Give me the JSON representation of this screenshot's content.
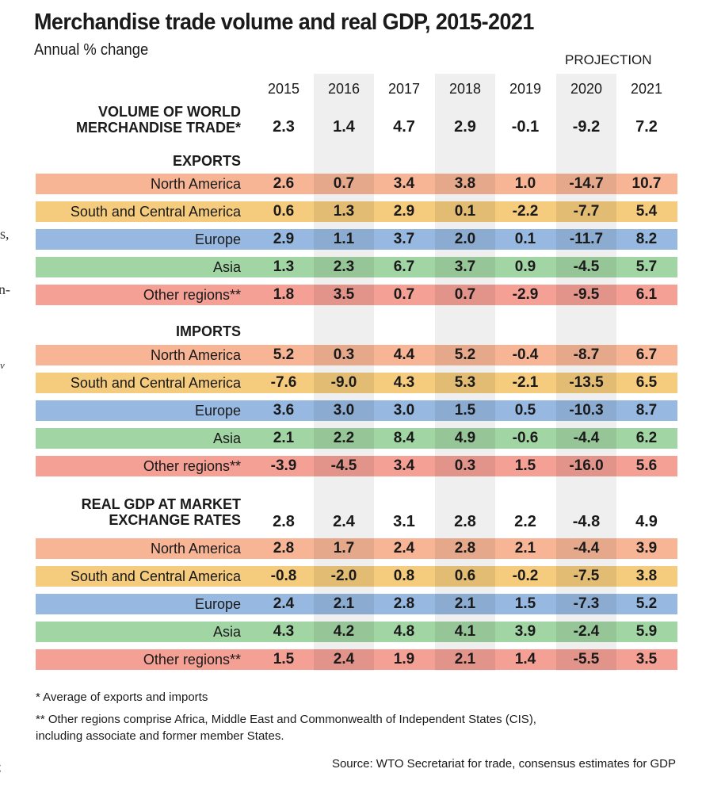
{
  "chart_data": {
    "type": "table",
    "title": "Merchandise trade volume and real GDP, 2015-2021",
    "subtitle": "Annual % change",
    "projection_label": "PROJECTION",
    "projection_years": [
      "2020",
      "2021"
    ],
    "years": [
      "2015",
      "2016",
      "2017",
      "2018",
      "2019",
      "2020",
      "2021"
    ],
    "world_trade": {
      "label_line1": "VOLUME OF WORLD",
      "label_line2": "MERCHANDISE TRADE*",
      "values": [
        "2.3",
        "1.4",
        "4.7",
        "2.9",
        "-0.1",
        "-9.2",
        "7.2"
      ]
    },
    "sections": [
      {
        "heading": "EXPORTS",
        "rows": [
          {
            "region": "North America",
            "values": [
              "2.6",
              "0.7",
              "3.4",
              "3.8",
              "1.0",
              "-14.7",
              "10.7"
            ]
          },
          {
            "region": "South and Central America",
            "values": [
              "0.6",
              "1.3",
              "2.9",
              "0.1",
              "-2.2",
              "-7.7",
              "5.4"
            ]
          },
          {
            "region": "Europe",
            "values": [
              "2.9",
              "1.1",
              "3.7",
              "2.0",
              "0.1",
              "-11.7",
              "8.2"
            ]
          },
          {
            "region": "Asia",
            "values": [
              "1.3",
              "2.3",
              "6.7",
              "3.7",
              "0.9",
              "-4.5",
              "5.7"
            ]
          },
          {
            "region": "Other regions**",
            "values": [
              "1.8",
              "3.5",
              "0.7",
              "0.7",
              "-2.9",
              "-9.5",
              "6.1"
            ]
          }
        ]
      },
      {
        "heading": "IMPORTS",
        "rows": [
          {
            "region": "North America",
            "values": [
              "5.2",
              "0.3",
              "4.4",
              "5.2",
              "-0.4",
              "-8.7",
              "6.7"
            ]
          },
          {
            "region": "South and Central America",
            "values": [
              "-7.6",
              "-9.0",
              "4.3",
              "5.3",
              "-2.1",
              "-13.5",
              "6.5"
            ]
          },
          {
            "region": "Europe",
            "values": [
              "3.6",
              "3.0",
              "3.0",
              "1.5",
              "0.5",
              "-10.3",
              "8.7"
            ]
          },
          {
            "region": "Asia",
            "values": [
              "2.1",
              "2.2",
              "8.4",
              "4.9",
              "-0.6",
              "-4.4",
              "6.2"
            ]
          },
          {
            "region": "Other regions**",
            "values": [
              "-3.9",
              "-4.5",
              "3.4",
              "0.3",
              "1.5",
              "-16.0",
              "5.6"
            ]
          }
        ]
      }
    ],
    "gdp": {
      "label_line1": "REAL GDP AT MARKET",
      "label_line2": "EXCHANGE RATES",
      "values": [
        "2.8",
        "2.4",
        "3.1",
        "2.8",
        "2.2",
        "-4.8",
        "4.9"
      ],
      "rows": [
        {
          "region": "North America",
          "values": [
            "2.8",
            "1.7",
            "2.4",
            "2.8",
            "2.1",
            "-4.4",
            "3.9"
          ]
        },
        {
          "region": "South and Central America",
          "values": [
            "-0.8",
            "-2.0",
            "0.8",
            "0.6",
            "-0.2",
            "-7.5",
            "3.8"
          ]
        },
        {
          "region": "Europe",
          "values": [
            "2.4",
            "2.1",
            "2.8",
            "2.1",
            "1.5",
            "-7.3",
            "5.2"
          ]
        },
        {
          "region": "Asia",
          "values": [
            "4.3",
            "4.2",
            "4.8",
            "4.1",
            "3.9",
            "-2.4",
            "5.9"
          ]
        },
        {
          "region": "Other regions**",
          "values": [
            "1.5",
            "2.4",
            "1.9",
            "2.1",
            "1.4",
            "-5.5",
            "3.5"
          ]
        }
      ]
    },
    "region_colors": {
      "North America": "#f8b595",
      "South and Central America": "#f5cb7d",
      "Europe": "#97b8e0",
      "Asia": "#a2d5a4",
      "Other regions**": "#f5a095"
    },
    "column_shade_color": "#efefef"
  },
  "footnotes": {
    "note1": "* Average of exports and imports",
    "note2_line1": "** Other regions comprise Africa, Middle East and Commonwealth of Independent States (CIS),",
    "note2_line2": "including associate and former member States.",
    "source": "Source: WTO Secretariat for trade, consensus estimates for GDP"
  },
  "margin_fragments": [
    "s,",
    "n-",
    "v",
    ";"
  ]
}
